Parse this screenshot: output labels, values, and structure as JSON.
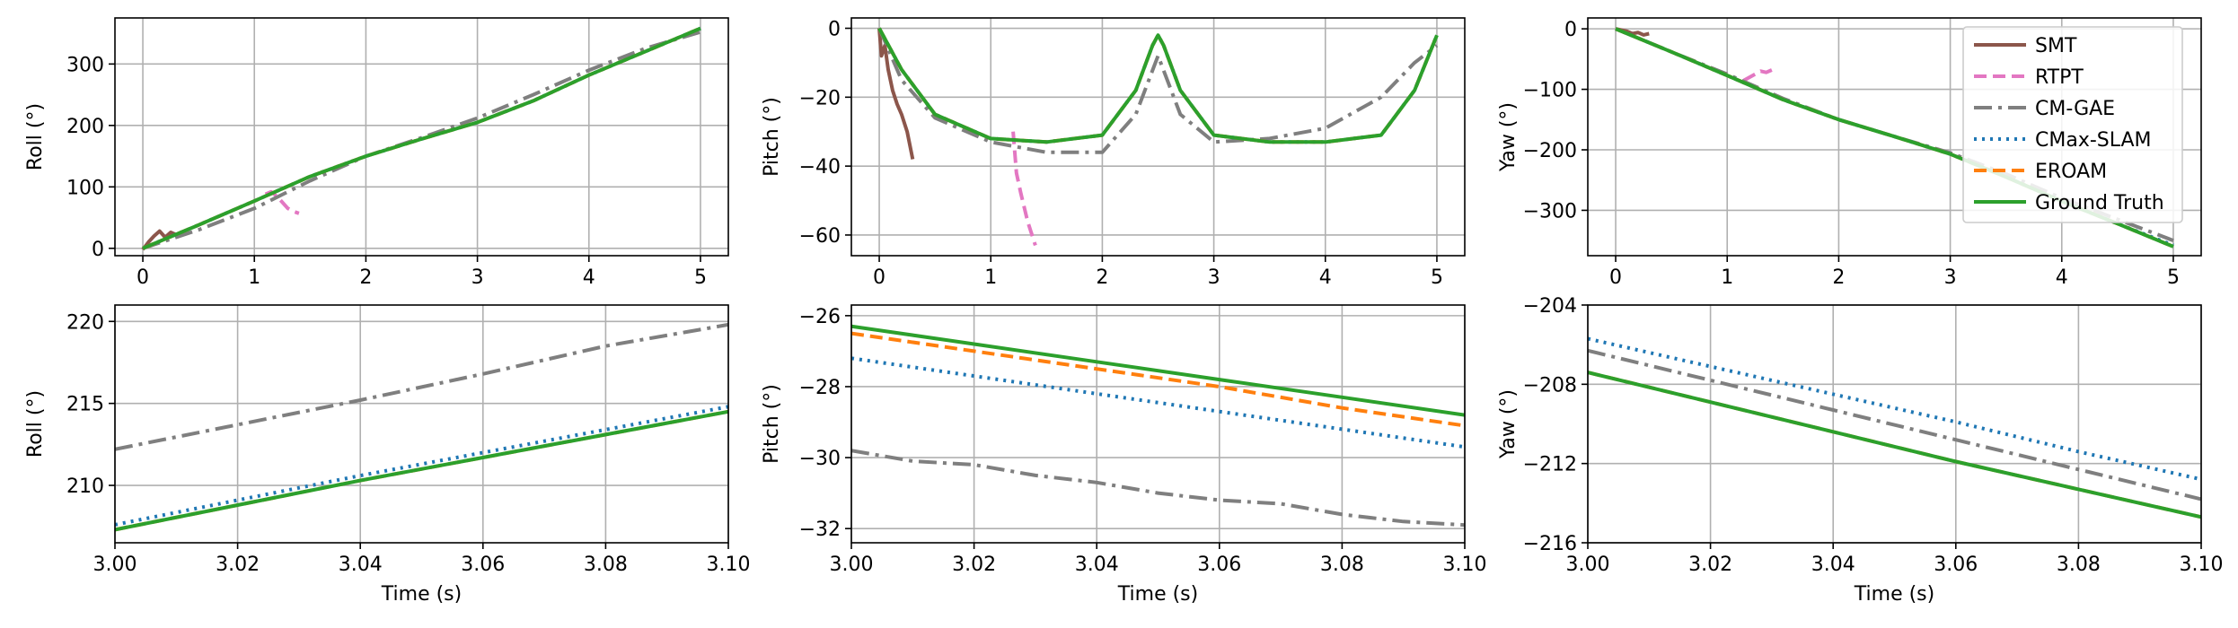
{
  "figure": {
    "description_free": true
  },
  "series_styles": [
    {
      "name": "SMT",
      "color": "#8c564b",
      "dash": "",
      "width": 4
    },
    {
      "name": "RTPT",
      "color": "#e377c2",
      "dash": "14,7",
      "width": 4
    },
    {
      "name": "CM-GAE",
      "color": "#7f7f7f",
      "dash": "20,7,4,7",
      "width": 4
    },
    {
      "name": "CMax-SLAM",
      "color": "#1f77b4",
      "dash": "3,6",
      "width": 4
    },
    {
      "name": "EROAM",
      "color": "#ff7f0e",
      "dash": "14,7",
      "width": 4
    },
    {
      "name": "Ground Truth",
      "color": "#2ca02c",
      "dash": "",
      "width": 4
    }
  ],
  "legend": {
    "placement": "top-right of top-right panel",
    "entries": [
      "SMT",
      "RTPT",
      "CM-GAE",
      "CMax-SLAM",
      "EROAM",
      "Ground Truth"
    ]
  },
  "chart_data": [
    {
      "type": "line",
      "title": "",
      "xlabel": "",
      "ylabel": "Roll (°)",
      "xlim": [
        -0.25,
        5.25
      ],
      "ylim": [
        -12,
        375
      ],
      "xticks": [
        0,
        1,
        2,
        3,
        4,
        5
      ],
      "xtick_labels": [
        "0",
        "1",
        "2",
        "3",
        "4",
        "5"
      ],
      "yticks": [
        0,
        100,
        200,
        300
      ],
      "ytick_labels": [
        "0",
        "100",
        "200",
        "300"
      ],
      "grid": true,
      "series": [
        {
          "name": "SMT",
          "x": [
            0,
            0.05,
            0.1,
            0.15,
            0.2,
            0.25,
            0.3
          ],
          "y": [
            -2,
            10,
            20,
            28,
            18,
            26,
            22
          ]
        },
        {
          "name": "RTPT",
          "x": [
            1.1,
            1.15,
            1.2,
            1.25,
            1.3,
            1.35,
            1.4
          ],
          "y": [
            88,
            92,
            85,
            75,
            65,
            60,
            57
          ]
        },
        {
          "name": "CM-GAE",
          "x": [
            0,
            0.5,
            1,
            1.5,
            2,
            2.5,
            3,
            3.5,
            4,
            4.5,
            5
          ],
          "y": [
            0,
            30,
            65,
            110,
            150,
            180,
            212,
            250,
            290,
            325,
            352
          ]
        },
        {
          "name": "CMax-SLAM",
          "x": [
            0,
            0.5,
            1,
            1.5,
            2,
            2.5,
            3,
            3.5,
            4,
            4.5,
            5
          ],
          "y": [
            0,
            38,
            77,
            117,
            150,
            178,
            205,
            240,
            282,
            320,
            358
          ]
        },
        {
          "name": "EROAM",
          "x": [
            0,
            0.5,
            1,
            1.5,
            2,
            2.5,
            3,
            3.5,
            4,
            4.5,
            5
          ],
          "y": [
            0,
            38,
            77,
            117,
            150,
            178,
            205,
            240,
            282,
            320,
            358
          ]
        },
        {
          "name": "Ground Truth",
          "x": [
            0,
            0.5,
            1,
            1.5,
            2,
            2.5,
            3,
            3.5,
            4,
            4.5,
            5
          ],
          "y": [
            0,
            38,
            77,
            117,
            150,
            178,
            205,
            240,
            282,
            320,
            358
          ]
        }
      ]
    },
    {
      "type": "line",
      "title": "",
      "xlabel": "",
      "ylabel": "Pitch (°)",
      "xlim": [
        -0.25,
        5.25
      ],
      "ylim": [
        -66,
        3
      ],
      "xticks": [
        0,
        1,
        2,
        3,
        4,
        5
      ],
      "xtick_labels": [
        "0",
        "1",
        "2",
        "3",
        "4",
        "5"
      ],
      "yticks": [
        0,
        -20,
        -40,
        -60
      ],
      "ytick_labels": [
        "0",
        "−20",
        "−40",
        "−60"
      ],
      "grid": true,
      "series": [
        {
          "name": "SMT",
          "x": [
            0,
            0.02,
            0.05,
            0.08,
            0.12,
            0.16,
            0.2,
            0.25,
            0.3
          ],
          "y": [
            0,
            -8,
            -5,
            -12,
            -18,
            -22,
            -25,
            -30,
            -38
          ]
        },
        {
          "name": "RTPT",
          "x": [
            1.2,
            1.23,
            1.27,
            1.3,
            1.33,
            1.36,
            1.4
          ],
          "y": [
            -30,
            -42,
            -48,
            -52,
            -56,
            -59,
            -63
          ]
        },
        {
          "name": "CM-GAE",
          "x": [
            0,
            0.2,
            0.5,
            1,
            1.5,
            2,
            2.3,
            2.5,
            2.7,
            3,
            3.5,
            4,
            4.5,
            4.8,
            5
          ],
          "y": [
            0,
            -15,
            -26,
            -33,
            -36,
            -36,
            -25,
            -8,
            -25,
            -33,
            -32,
            -29,
            -20,
            -10,
            -5
          ]
        },
        {
          "name": "CMax-SLAM",
          "x": [
            0,
            0.2,
            0.5,
            1,
            1.5,
            2,
            2.3,
            2.45,
            2.5,
            2.55,
            2.7,
            3,
            3.5,
            4,
            4.5,
            4.8,
            5
          ],
          "y": [
            0,
            -12,
            -25,
            -32,
            -33,
            -31,
            -18,
            -5,
            -2,
            -5,
            -18,
            -31,
            -33,
            -33,
            -31,
            -18,
            -2
          ]
        },
        {
          "name": "EROAM",
          "x": [
            0,
            0.2,
            0.5,
            1,
            1.5,
            2,
            2.3,
            2.45,
            2.5,
            2.55,
            2.7,
            3,
            3.5,
            4,
            4.5,
            4.8,
            5
          ],
          "y": [
            0,
            -12,
            -25,
            -32,
            -33,
            -31,
            -18,
            -5,
            -2,
            -5,
            -18,
            -31,
            -33,
            -33,
            -31,
            -18,
            -2
          ]
        },
        {
          "name": "Ground Truth",
          "x": [
            0,
            0.2,
            0.5,
            1,
            1.5,
            2,
            2.3,
            2.45,
            2.5,
            2.55,
            2.7,
            3,
            3.5,
            4,
            4.5,
            4.8,
            5
          ],
          "y": [
            0,
            -12,
            -25,
            -32,
            -33,
            -31,
            -18,
            -5,
            -2,
            -5,
            -18,
            -31,
            -33,
            -33,
            -31,
            -18,
            -2
          ]
        }
      ]
    },
    {
      "type": "line",
      "title": "",
      "xlabel": "",
      "ylabel": "Yaw (°)",
      "xlim": [
        -0.25,
        5.25
      ],
      "ylim": [
        -375,
        18
      ],
      "xticks": [
        0,
        1,
        2,
        3,
        4,
        5
      ],
      "xtick_labels": [
        "0",
        "1",
        "2",
        "3",
        "4",
        "5"
      ],
      "yticks": [
        0,
        -100,
        -200,
        -300
      ],
      "ytick_labels": [
        "0",
        "−100",
        "−200",
        "−300"
      ],
      "grid": true,
      "series": [
        {
          "name": "SMT",
          "x": [
            0,
            0.05,
            0.1,
            0.15,
            0.2,
            0.25,
            0.3
          ],
          "y": [
            0,
            -2,
            -4,
            -8,
            -6,
            -10,
            -8
          ]
        },
        {
          "name": "RTPT",
          "x": [
            1.15,
            1.2,
            1.25,
            1.3,
            1.35,
            1.4
          ],
          "y": [
            -85,
            -80,
            -75,
            -70,
            -72,
            -68
          ]
        },
        {
          "name": "CM-GAE",
          "x": [
            0,
            0.5,
            1,
            1.5,
            2,
            2.5,
            3,
            3.5,
            4,
            4.5,
            5
          ],
          "y": [
            0,
            -38,
            -75,
            -115,
            -150,
            -178,
            -205,
            -240,
            -280,
            -315,
            -350
          ]
        },
        {
          "name": "CMax-SLAM",
          "x": [
            0,
            0.5,
            1,
            1.5,
            2,
            2.5,
            3,
            3.5,
            4,
            4.5,
            5
          ],
          "y": [
            0,
            -38,
            -77,
            -117,
            -150,
            -178,
            -207,
            -245,
            -285,
            -322,
            -358
          ]
        },
        {
          "name": "EROAM",
          "x": [
            0,
            0.5,
            1,
            1.5,
            2,
            2.5,
            3,
            3.5,
            4,
            4.5,
            5
          ],
          "y": [
            0,
            -38,
            -77,
            -117,
            -150,
            -178,
            -207,
            -245,
            -285,
            -322,
            -360
          ]
        },
        {
          "name": "Ground Truth",
          "x": [
            0,
            0.5,
            1,
            1.5,
            2,
            2.5,
            3,
            3.5,
            4,
            4.5,
            5
          ],
          "y": [
            0,
            -38,
            -77,
            -117,
            -150,
            -178,
            -207,
            -245,
            -285,
            -322,
            -360
          ]
        }
      ]
    },
    {
      "type": "line",
      "title": "",
      "xlabel": "Time (s)",
      "ylabel": "Roll (°)",
      "xlim": [
        3.0,
        3.1
      ],
      "ylim": [
        206.5,
        221
      ],
      "xticks": [
        3.0,
        3.02,
        3.04,
        3.06,
        3.08,
        3.1
      ],
      "xtick_labels": [
        "3.00",
        "3.02",
        "3.04",
        "3.06",
        "3.08",
        "3.10"
      ],
      "yticks": [
        210,
        215,
        220
      ],
      "ytick_labels": [
        "210",
        "215",
        "220"
      ],
      "grid": true,
      "series": [
        {
          "name": "CM-GAE",
          "x": [
            3.0,
            3.02,
            3.04,
            3.06,
            3.08,
            3.1
          ],
          "y": [
            212.2,
            213.7,
            215.2,
            216.8,
            218.5,
            219.8
          ]
        },
        {
          "name": "CMax-SLAM",
          "x": [
            3.0,
            3.02,
            3.04,
            3.06,
            3.08,
            3.1
          ],
          "y": [
            207.6,
            209.1,
            210.6,
            212.0,
            213.4,
            214.8
          ]
        },
        {
          "name": "EROAM",
          "x": [
            3.0,
            3.02,
            3.04,
            3.06,
            3.08,
            3.1
          ],
          "y": [
            207.3,
            208.8,
            210.3,
            211.7,
            213.1,
            214.5
          ]
        },
        {
          "name": "Ground Truth",
          "x": [
            3.0,
            3.02,
            3.04,
            3.06,
            3.08,
            3.1
          ],
          "y": [
            207.3,
            208.8,
            210.3,
            211.7,
            213.1,
            214.5
          ]
        }
      ]
    },
    {
      "type": "line",
      "title": "",
      "xlabel": "Time (s)",
      "ylabel": "Pitch (°)",
      "xlim": [
        3.0,
        3.1
      ],
      "ylim": [
        -32.4,
        -25.7
      ],
      "xticks": [
        3.0,
        3.02,
        3.04,
        3.06,
        3.08,
        3.1
      ],
      "xtick_labels": [
        "3.00",
        "3.02",
        "3.04",
        "3.06",
        "3.08",
        "3.10"
      ],
      "yticks": [
        -26,
        -28,
        -30,
        -32
      ],
      "ytick_labels": [
        "−26",
        "−28",
        "−30",
        "−32"
      ],
      "grid": true,
      "series": [
        {
          "name": "CM-GAE",
          "x": [
            3.0,
            3.01,
            3.02,
            3.03,
            3.04,
            3.05,
            3.06,
            3.07,
            3.08,
            3.09,
            3.1
          ],
          "y": [
            -29.8,
            -30.1,
            -30.2,
            -30.5,
            -30.7,
            -31.0,
            -31.2,
            -31.3,
            -31.6,
            -31.8,
            -31.9
          ]
        },
        {
          "name": "CMax-SLAM",
          "x": [
            3.0,
            3.02,
            3.04,
            3.06,
            3.08,
            3.1
          ],
          "y": [
            -27.2,
            -27.7,
            -28.2,
            -28.7,
            -29.2,
            -29.7
          ]
        },
        {
          "name": "EROAM",
          "x": [
            3.0,
            3.02,
            3.04,
            3.06,
            3.08,
            3.1
          ],
          "y": [
            -26.5,
            -27.0,
            -27.5,
            -28.0,
            -28.6,
            -29.1
          ]
        },
        {
          "name": "Ground Truth",
          "x": [
            3.0,
            3.02,
            3.04,
            3.06,
            3.08,
            3.1
          ],
          "y": [
            -26.3,
            -26.8,
            -27.3,
            -27.8,
            -28.3,
            -28.8
          ]
        }
      ]
    },
    {
      "type": "line",
      "title": "",
      "xlabel": "Time (s)",
      "ylabel": "Yaw (°)",
      "xlim": [
        3.0,
        3.1
      ],
      "ylim": [
        -216,
        -204
      ],
      "xticks": [
        3.0,
        3.02,
        3.04,
        3.06,
        3.08,
        3.1
      ],
      "xtick_labels": [
        "3.00",
        "3.02",
        "3.04",
        "3.06",
        "3.08",
        "3.10"
      ],
      "yticks": [
        -204,
        -208,
        -212,
        -216
      ],
      "ytick_labels": [
        "−204",
        "−208",
        "−212",
        "−216"
      ],
      "grid": true,
      "series": [
        {
          "name": "CM-GAE",
          "x": [
            3.0,
            3.02,
            3.04,
            3.06,
            3.08,
            3.1
          ],
          "y": [
            -206.3,
            -207.8,
            -209.3,
            -210.8,
            -212.3,
            -213.8
          ]
        },
        {
          "name": "CMax-SLAM",
          "x": [
            3.0,
            3.02,
            3.04,
            3.06,
            3.08,
            3.1
          ],
          "y": [
            -205.7,
            -207.1,
            -208.5,
            -209.9,
            -211.4,
            -212.8
          ]
        },
        {
          "name": "EROAM",
          "x": [
            3.0,
            3.02,
            3.04,
            3.06,
            3.08,
            3.1
          ],
          "y": [
            -207.4,
            -208.9,
            -210.4,
            -211.9,
            -213.3,
            -214.7
          ]
        },
        {
          "name": "Ground Truth",
          "x": [
            3.0,
            3.02,
            3.04,
            3.06,
            3.08,
            3.1
          ],
          "y": [
            -207.4,
            -208.9,
            -210.4,
            -211.9,
            -213.3,
            -214.7
          ]
        }
      ]
    }
  ]
}
